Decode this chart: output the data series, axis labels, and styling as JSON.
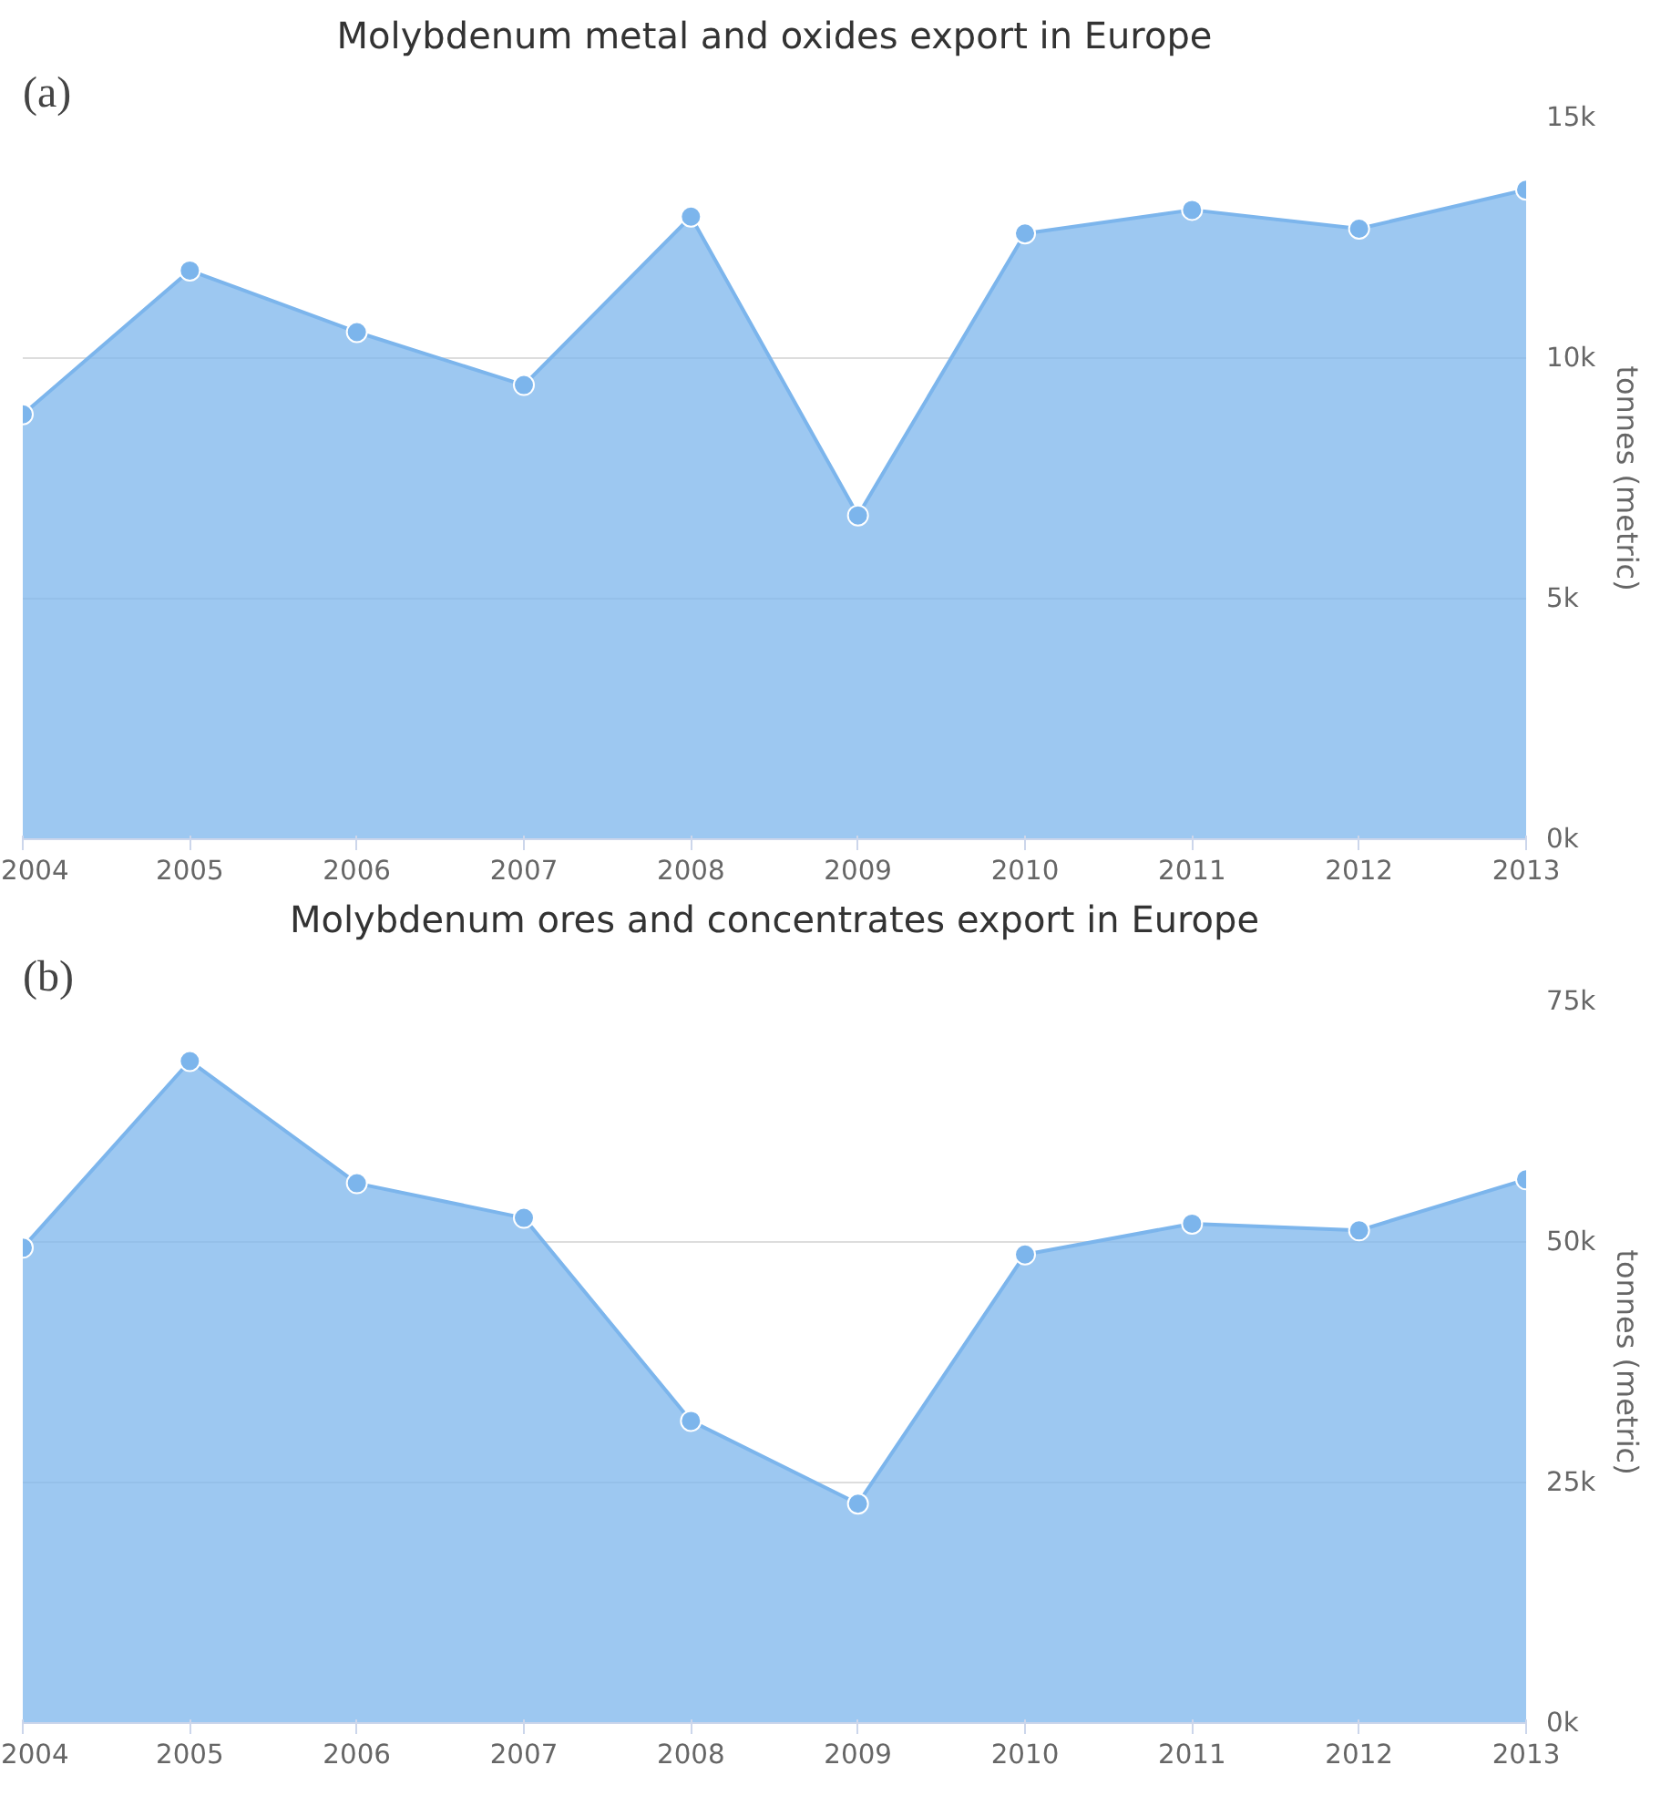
{
  "chart_data": [
    {
      "type": "area",
      "title": "Molybdenum metal and oxides export in Europe",
      "ylabel": "tonnes (metric)",
      "annotations": [
        "(a)"
      ],
      "x": [
        2004,
        2005,
        2006,
        2007,
        2008,
        2009,
        2010,
        2011,
        2012,
        2013
      ],
      "series": [
        {
          "color": "#7cb5ec",
          "values": [
            8.83,
            11.82,
            10.54,
            9.44,
            12.94,
            6.73,
            12.59,
            13.08,
            12.69,
            13.5
          ]
        }
      ],
      "xlim": [
        2004,
        2013
      ],
      "xticks": [
        2004,
        2005,
        2006,
        2007,
        2008,
        2009,
        2010,
        2011,
        2012,
        2013
      ],
      "ylim": [
        0,
        15
      ],
      "yticks": [
        {
          "value": 0,
          "label": "0k"
        },
        {
          "value": 5,
          "label": "5k"
        },
        {
          "value": 10,
          "label": "10k"
        },
        {
          "value": 15,
          "label": "15k"
        }
      ],
      "grid": "y",
      "marker": "circle",
      "line_style": "solid"
    },
    {
      "type": "area",
      "title": "Molybdenum ores and concentrates export in Europe",
      "ylabel": "tonnes (metric)",
      "annotations": [
        "(b)"
      ],
      "x": [
        2004,
        2005,
        2006,
        2007,
        2008,
        2009,
        2010,
        2011,
        2012,
        2013
      ],
      "series": [
        {
          "color": "#7cb5ec",
          "values": [
            49.4,
            68.8,
            56.1,
            52.5,
            31.4,
            22.8,
            48.7,
            51.9,
            51.2,
            56.5
          ]
        }
      ],
      "xlim": [
        2004,
        2013
      ],
      "xticks": [
        2004,
        2005,
        2006,
        2007,
        2008,
        2009,
        2010,
        2011,
        2012,
        2013
      ],
      "ylim": [
        0,
        75
      ],
      "yticks": [
        {
          "value": 0,
          "label": "0k"
        },
        {
          "value": 25,
          "label": "25k"
        },
        {
          "value": 50,
          "label": "50k"
        },
        {
          "value": 75,
          "label": "75k"
        }
      ],
      "grid": "y",
      "marker": "circle",
      "line_style": "solid"
    }
  ]
}
